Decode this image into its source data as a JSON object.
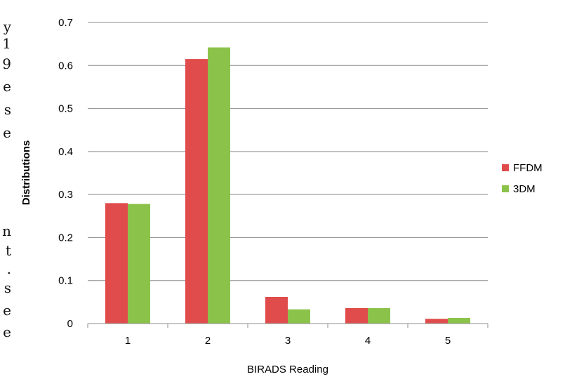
{
  "chart_data": {
    "type": "bar",
    "categories": [
      "1",
      "2",
      "3",
      "4",
      "5"
    ],
    "series": [
      {
        "name": "FFDM",
        "color": "#e04b4b",
        "values": [
          0.28,
          0.615,
          0.062,
          0.036,
          0.011
        ]
      },
      {
        "name": "3DM",
        "color": "#8bc34a",
        "values": [
          0.278,
          0.642,
          0.033,
          0.036,
          0.013
        ]
      }
    ],
    "xlabel": "BIRADS Reading",
    "ylabel": "Distributions",
    "ylim": [
      0,
      0.7
    ],
    "yticks": [
      "0",
      "0.1",
      "0.2",
      "0.3",
      "0.4",
      "0.5",
      "0.6",
      "0.7"
    ],
    "grid": true,
    "legend_position": "right"
  },
  "cropped_text_fragments": [
    "y",
    "1",
    "9",
    "e",
    "s",
    "e",
    "n",
    "t",
    ".",
    "s",
    "e",
    "e"
  ]
}
